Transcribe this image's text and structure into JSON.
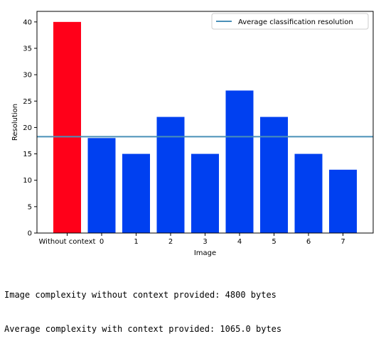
{
  "chart_data": {
    "type": "bar",
    "categories": [
      "Without context",
      "0",
      "1",
      "2",
      "3",
      "4",
      "5",
      "6",
      "7"
    ],
    "values": [
      40,
      18,
      15,
      22,
      15,
      27,
      22,
      15,
      12
    ],
    "bar_colors": [
      "#ff0019",
      "#0040f0",
      "#0040f0",
      "#0040f0",
      "#0040f0",
      "#0040f0",
      "#0040f0",
      "#0040f0",
      "#0040f0"
    ],
    "title": "",
    "xlabel": "Image",
    "ylabel": "Resolution",
    "ylim": [
      0,
      42
    ],
    "yticks": [
      0,
      5,
      10,
      15,
      20,
      25,
      30,
      35,
      40
    ],
    "reference_line": {
      "name": "Average classification resolution",
      "value": 18.25,
      "color": "#4a90b8"
    },
    "legend_location": "upper right",
    "grid": false
  },
  "output": {
    "line1": "Image complexity without context provided: 4800 bytes",
    "line2": "Average complexity with context provided: 1065.0 bytes"
  }
}
